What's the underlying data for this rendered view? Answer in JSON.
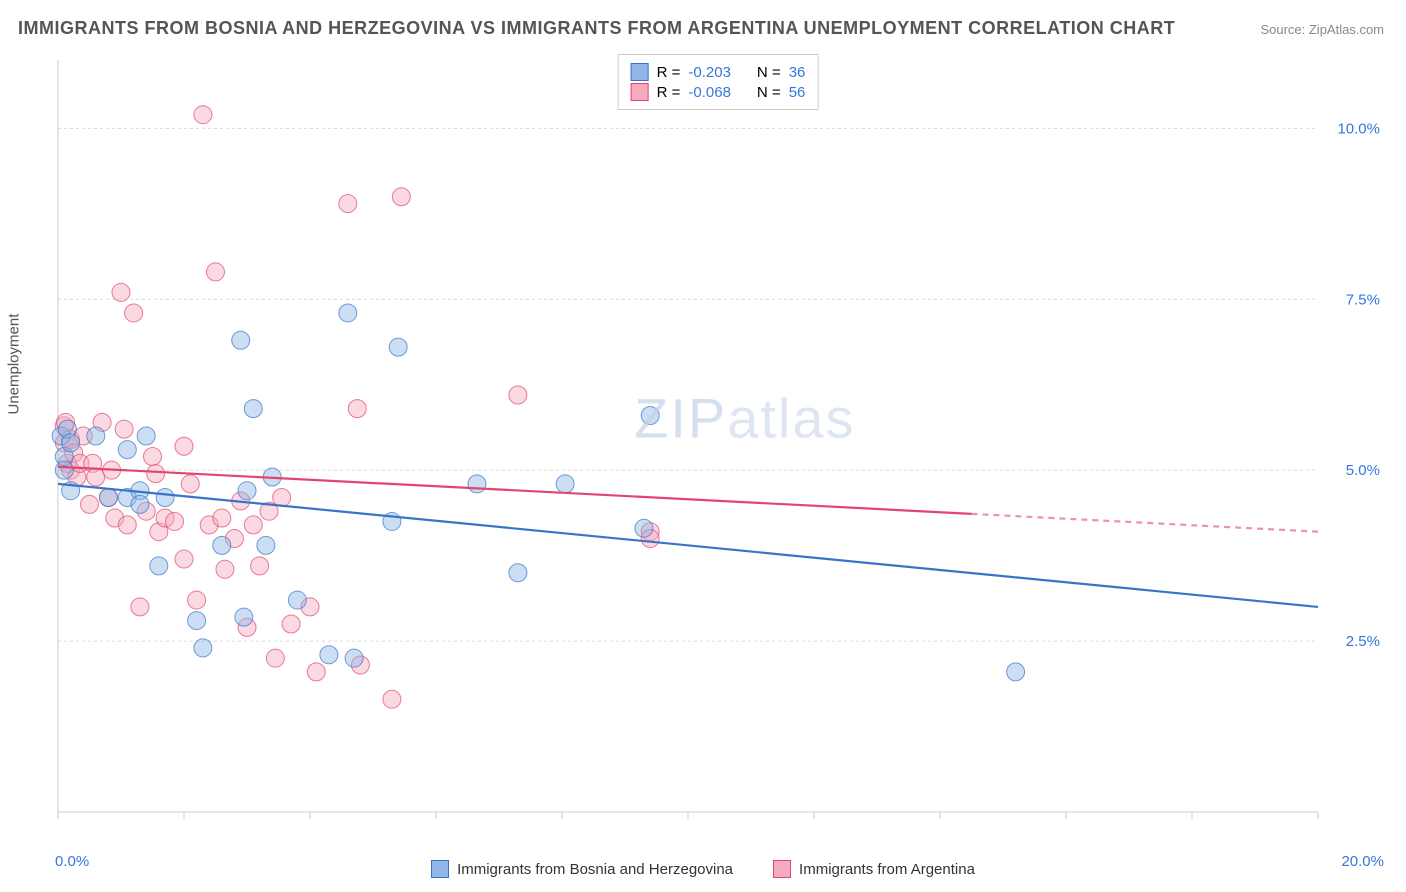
{
  "title": "IMMIGRANTS FROM BOSNIA AND HERZEGOVINA VS IMMIGRANTS FROM ARGENTINA UNEMPLOYMENT CORRELATION CHART",
  "source": "Source: ZipAtlas.com",
  "y_axis_label": "Unemployment",
  "watermark": "ZIPatlas",
  "chart": {
    "type": "scatter",
    "background_color": "#ffffff",
    "grid_color": "#d8d8d8",
    "axis_color": "#cccccc",
    "xlim": [
      0,
      20
    ],
    "ylim": [
      0,
      11
    ],
    "x_origin_label": "0.0%",
    "x_max_label": "20.0%",
    "y_ticks": [
      {
        "value": 2.5,
        "label": "2.5%"
      },
      {
        "value": 5.0,
        "label": "5.0%"
      },
      {
        "value": 7.5,
        "label": "7.5%"
      },
      {
        "value": 10.0,
        "label": "10.0%"
      }
    ],
    "y_tick_color": "#3377dd",
    "x_tick_positions": [
      0,
      2,
      4,
      6,
      8,
      10,
      12,
      14,
      16,
      18,
      20
    ],
    "marker_radius": 9,
    "marker_opacity": 0.45,
    "line_width": 2.2,
    "series": [
      {
        "id": "bosnia",
        "label": "Immigrants from Bosnia and Herzegovina",
        "color_stroke": "#3874c9",
        "color_fill": "#8fb6e6",
        "R": "-0.203",
        "N": "36",
        "trend": {
          "x1": 0,
          "y1": 4.8,
          "x2": 20,
          "y2": 3.0,
          "dashed_from_x": null
        },
        "points": [
          [
            0.05,
            5.5
          ],
          [
            0.1,
            5.2
          ],
          [
            0.1,
            5.0
          ],
          [
            0.15,
            5.6
          ],
          [
            0.2,
            4.7
          ],
          [
            0.2,
            5.4
          ],
          [
            0.6,
            5.5
          ],
          [
            0.8,
            4.6
          ],
          [
            1.1,
            5.3
          ],
          [
            1.1,
            4.6
          ],
          [
            1.3,
            4.7
          ],
          [
            1.3,
            4.5
          ],
          [
            1.4,
            5.5
          ],
          [
            1.6,
            3.6
          ],
          [
            1.7,
            4.6
          ],
          [
            2.2,
            2.8
          ],
          [
            2.3,
            2.4
          ],
          [
            2.6,
            3.9
          ],
          [
            2.9,
            6.9
          ],
          [
            2.95,
            2.85
          ],
          [
            3.0,
            4.7
          ],
          [
            3.1,
            5.9
          ],
          [
            3.3,
            3.9
          ],
          [
            3.4,
            4.9
          ],
          [
            3.8,
            3.1
          ],
          [
            4.3,
            2.3
          ],
          [
            4.6,
            7.3
          ],
          [
            4.7,
            2.25
          ],
          [
            5.3,
            4.25
          ],
          [
            5.4,
            6.8
          ],
          [
            6.65,
            4.8
          ],
          [
            7.3,
            3.5
          ],
          [
            8.05,
            4.8
          ],
          [
            9.4,
            5.8
          ],
          [
            9.3,
            4.15
          ],
          [
            15.2,
            2.05
          ]
        ]
      },
      {
        "id": "argentina",
        "label": "Immigrants from Argentina",
        "color_stroke": "#e1476e",
        "color_fill": "#f5aabf",
        "R": "-0.068",
        "N": "56",
        "trend": {
          "x1": 0,
          "y1": 5.05,
          "x2": 20,
          "y2": 4.1,
          "dashed_from_x": 14.5
        },
        "points": [
          [
            0.1,
            5.65
          ],
          [
            0.1,
            5.4
          ],
          [
            0.12,
            5.7
          ],
          [
            0.15,
            5.1
          ],
          [
            0.2,
            5.45
          ],
          [
            0.2,
            5.0
          ],
          [
            0.25,
            5.25
          ],
          [
            0.3,
            4.9
          ],
          [
            0.35,
            5.1
          ],
          [
            0.4,
            5.5
          ],
          [
            0.5,
            4.5
          ],
          [
            0.55,
            5.1
          ],
          [
            0.6,
            4.9
          ],
          [
            0.7,
            5.7
          ],
          [
            0.8,
            4.6
          ],
          [
            0.85,
            5.0
          ],
          [
            0.9,
            4.3
          ],
          [
            1.0,
            7.6
          ],
          [
            1.05,
            5.6
          ],
          [
            1.1,
            4.2
          ],
          [
            1.2,
            7.3
          ],
          [
            1.3,
            3.0
          ],
          [
            1.4,
            4.4
          ],
          [
            1.5,
            5.2
          ],
          [
            1.55,
            4.95
          ],
          [
            1.6,
            4.1
          ],
          [
            1.7,
            4.3
          ],
          [
            1.85,
            4.25
          ],
          [
            2.0,
            3.7
          ],
          [
            2.1,
            4.8
          ],
          [
            2.2,
            3.1
          ],
          [
            2.3,
            10.2
          ],
          [
            2.4,
            4.2
          ],
          [
            2.5,
            7.9
          ],
          [
            2.6,
            4.3
          ],
          [
            2.65,
            3.55
          ],
          [
            2.8,
            4.0
          ],
          [
            2.9,
            4.55
          ],
          [
            3.0,
            2.7
          ],
          [
            3.1,
            4.2
          ],
          [
            3.2,
            3.6
          ],
          [
            3.35,
            4.4
          ],
          [
            3.45,
            2.25
          ],
          [
            3.55,
            4.6
          ],
          [
            3.7,
            2.75
          ],
          [
            4.0,
            3.0
          ],
          [
            4.1,
            2.05
          ],
          [
            4.6,
            8.9
          ],
          [
            4.75,
            5.9
          ],
          [
            4.8,
            2.15
          ],
          [
            5.3,
            1.65
          ],
          [
            5.45,
            9.0
          ],
          [
            7.3,
            6.1
          ],
          [
            9.4,
            4.1
          ],
          [
            9.4,
            4.0
          ],
          [
            2.0,
            5.35
          ]
        ]
      }
    ]
  },
  "legend_top": {
    "R_label": "R =",
    "N_label": "N =",
    "value_color": "#3377dd",
    "text_color": "#333333"
  }
}
